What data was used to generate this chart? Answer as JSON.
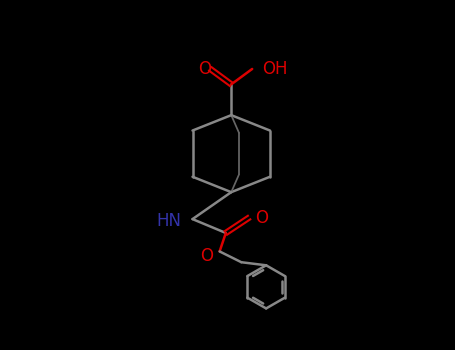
{
  "bg_color": "#000000",
  "bond_color": "#888888",
  "o_color": "#dd0000",
  "n_color": "#3333aa",
  "bond_lw": 1.8,
  "font_size": 11,
  "fig_width": 4.55,
  "fig_height": 3.5,
  "dpi": 100,
  "cooh_label_o": "O",
  "cooh_label_oh": "OH",
  "nh_label": "HN",
  "co_label": "O",
  "ester_o_label": "O"
}
